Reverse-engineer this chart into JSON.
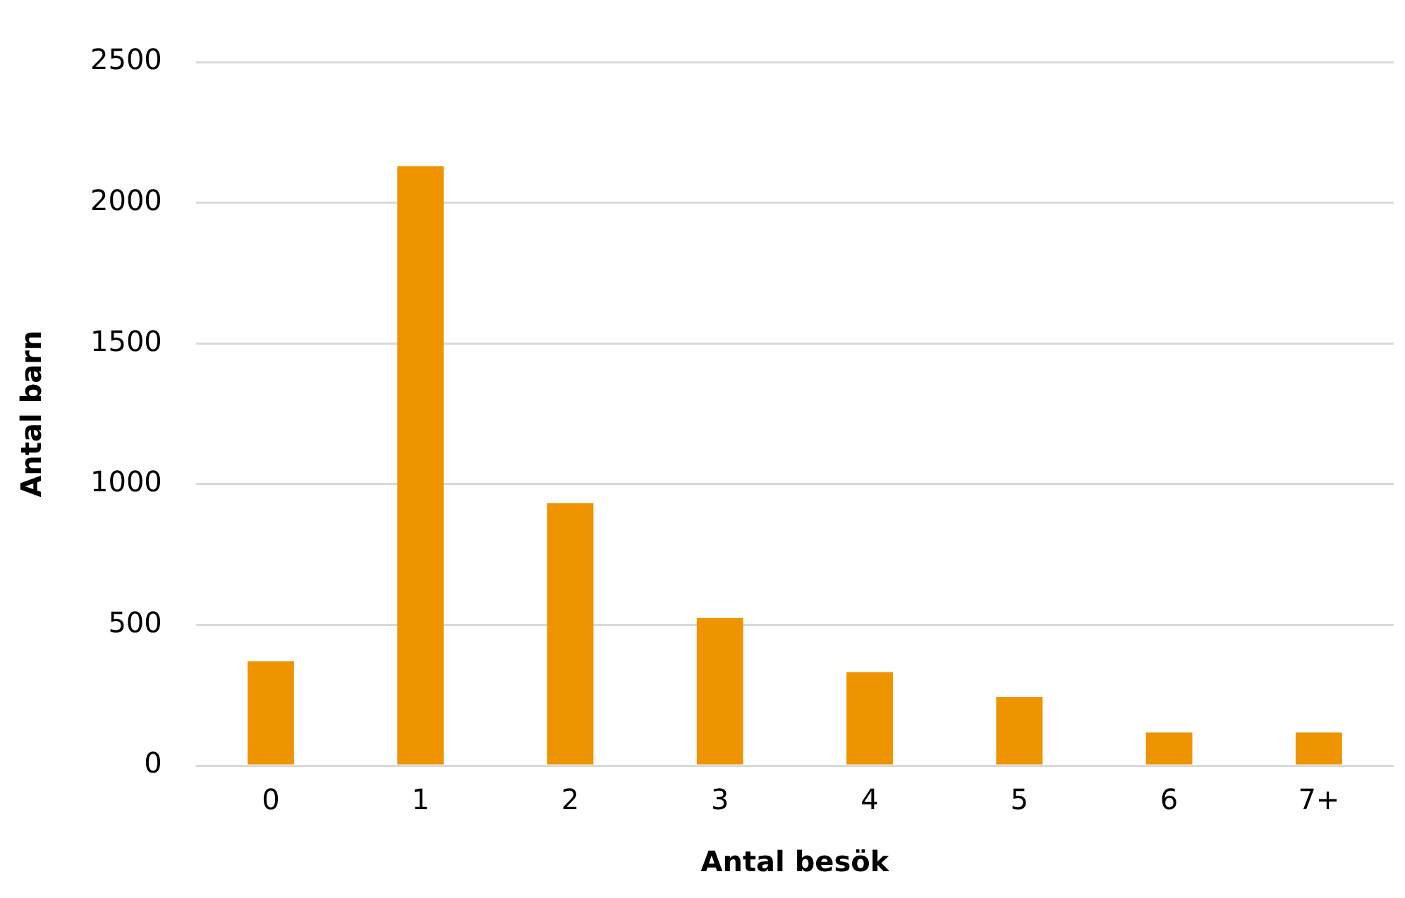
{
  "chart_data": {
    "type": "bar",
    "xlabel": "Antal besök",
    "ylabel": "Antal barn",
    "categories": [
      "0",
      "1",
      "2",
      "3",
      "4",
      "5",
      "6",
      "7+"
    ],
    "values": [
      370,
      2130,
      932,
      524,
      332,
      243,
      117,
      117
    ],
    "color": "#ed9400",
    "ylim": [
      0,
      2500
    ],
    "yticks": [
      0,
      500,
      1000,
      1500,
      2000,
      2500
    ],
    "grid": "y",
    "legend": false
  }
}
